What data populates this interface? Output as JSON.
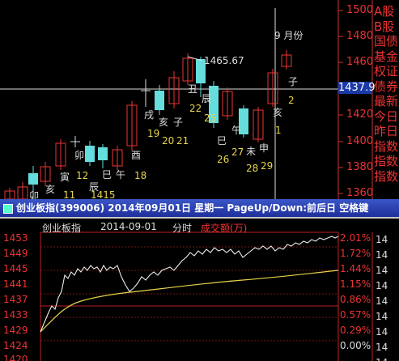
{
  "kline": {
    "price_axis": [
      "1500",
      "1480",
      "1460",
      "1440",
      "1420",
      "1400",
      "1380",
      "1360"
    ],
    "current_price": "1437.9",
    "peak_label": "1465.67",
    "month_label": "9 月份",
    "bottom_label_1415": "1415",
    "branch_labels": [
      {
        "t": "亥",
        "c": "wht"
      },
      {
        "t": "寅",
        "c": "wht"
      },
      {
        "t": "卯",
        "c": "wht"
      },
      {
        "t": "辰",
        "c": "wht"
      },
      {
        "t": "巳",
        "c": "wht"
      },
      {
        "t": "午",
        "c": "wht"
      },
      {
        "t": "酉",
        "c": "wht"
      },
      {
        "t": "戌",
        "c": "wht"
      },
      {
        "t": "亥",
        "c": "wht"
      },
      {
        "t": "子",
        "c": "wht"
      },
      {
        "t": "丑",
        "c": "wht"
      },
      {
        "t": "辰",
        "c": "wht"
      },
      {
        "t": "巳",
        "c": "wht"
      },
      {
        "t": "午",
        "c": "wht"
      },
      {
        "t": "未",
        "c": "wht"
      },
      {
        "t": "申",
        "c": "wht"
      },
      {
        "t": "亥",
        "c": "wht"
      },
      {
        "t": "子",
        "c": "wht"
      },
      {
        "t": "卯",
        "c": "wht"
      }
    ],
    "day_numbers": [
      "11",
      "12",
      "18",
      "19",
      "20",
      "21",
      "22",
      "25",
      "26",
      "27",
      "28",
      "29",
      "1",
      "2"
    ],
    "info_panel": [
      "A股",
      "B股",
      "国债",
      "基金",
      "权证",
      "债券",
      "最新",
      "今日",
      "昨日",
      "指数",
      "指数",
      "指数"
    ]
  },
  "titlebar": {
    "text": "创业板指(399006) 2014年09月01日 星期一 PageUp/Down:前后日 空格键"
  },
  "minute": {
    "header_name": "创业板指",
    "header_date": "2014-09-01",
    "header_type": "分时",
    "header_metric": "成交额(万)",
    "price_ticks": [
      "1453",
      "1449",
      "1445",
      "1441",
      "1437",
      "1433",
      "1429",
      "1424",
      "1420"
    ],
    "pct_ticks": [
      "2.01%",
      "1.72%",
      "1.44%",
      "1.15%",
      "0.86%",
      "0.57%",
      "0.29%",
      "0.00%"
    ],
    "right_ticks": [
      "14",
      "14",
      "14",
      "14",
      "14",
      "14",
      "14",
      "14",
      "14"
    ]
  }
}
